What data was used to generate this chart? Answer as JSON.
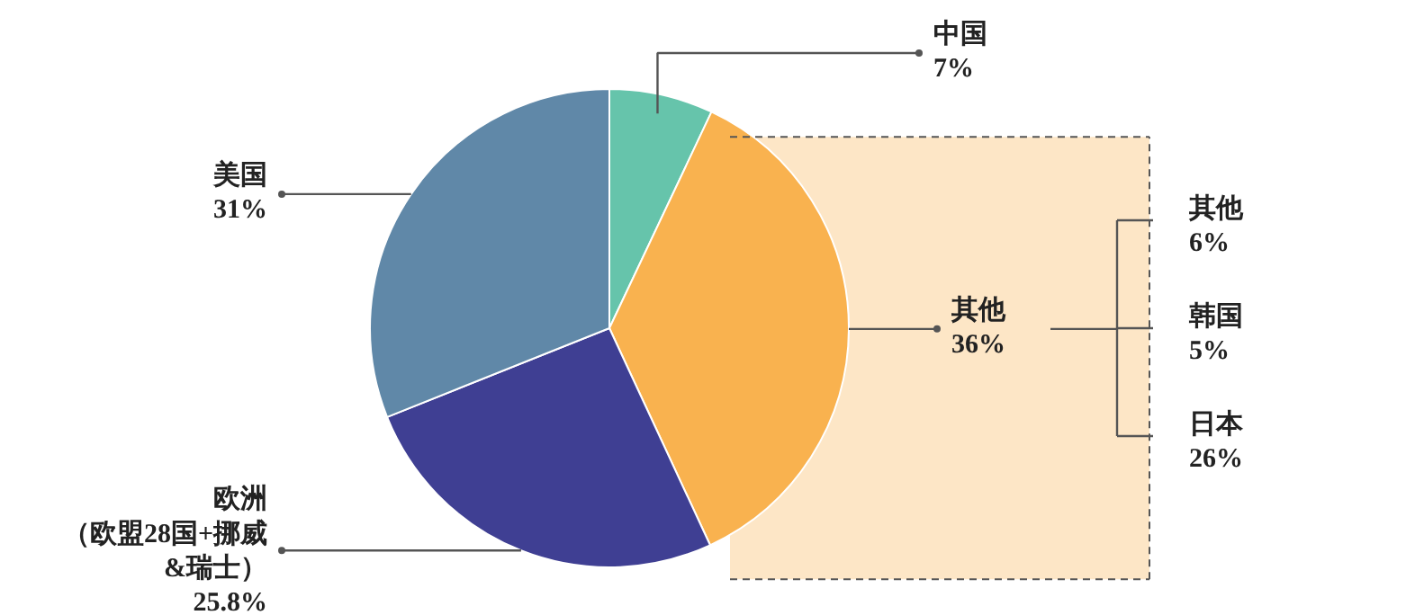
{
  "chart_data": {
    "type": "pie",
    "categories": [
      "中国",
      "其他",
      "欧洲（欧盟28国+挪威&瑞士）",
      "美国"
    ],
    "values": [
      7,
      36,
      25.8,
      31
    ],
    "colors": [
      "#66c4ab",
      "#f9b24f",
      "#3f3f93",
      "#6088a8"
    ],
    "value_labels": [
      "7%",
      "36%",
      "25.8%",
      "31%"
    ],
    "annotations": [
      "其他\n6%",
      "韩国\n5%",
      "日本\n26%"
    ]
  }
}
